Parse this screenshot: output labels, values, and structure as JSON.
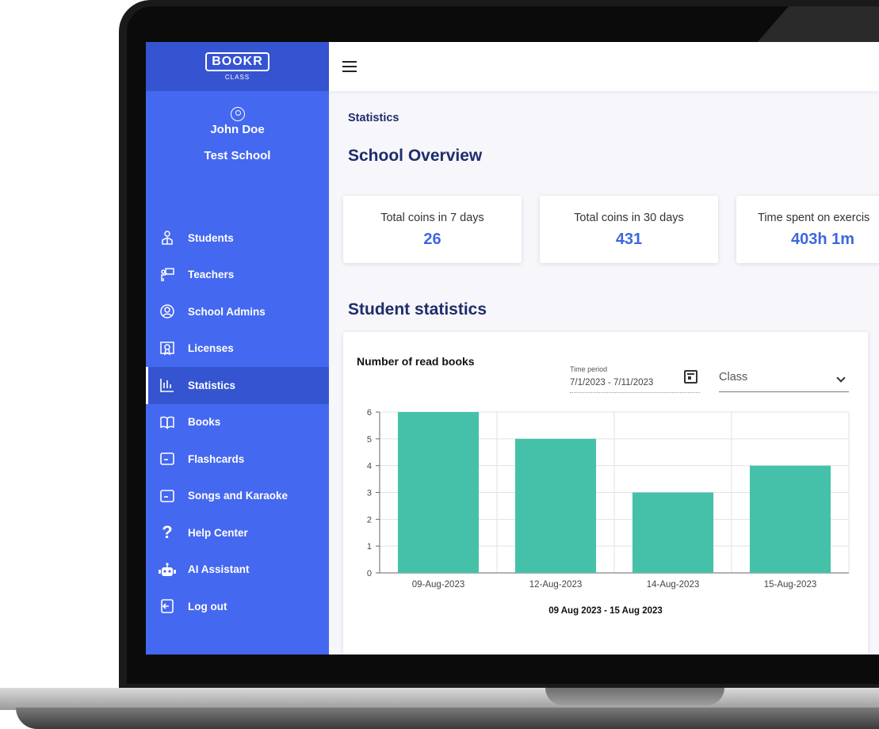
{
  "brand": {
    "logo": "BOOKR",
    "sub": "CLASS"
  },
  "profile": {
    "name": "John Doe",
    "school": "Test School"
  },
  "nav": [
    {
      "label": "Students",
      "icon": "student-icon"
    },
    {
      "label": "Teachers",
      "icon": "teacher-icon"
    },
    {
      "label": "School Admins",
      "icon": "admin-user-icon"
    },
    {
      "label": "Licenses",
      "icon": "license-icon"
    },
    {
      "label": "Statistics",
      "icon": "bar-chart-icon",
      "active": true
    },
    {
      "label": "Books",
      "icon": "book-icon"
    },
    {
      "label": "Flashcards",
      "icon": "flashcard-icon"
    },
    {
      "label": "Songs and Karaoke",
      "icon": "song-icon"
    },
    {
      "label": "Help Center",
      "icon": "question-icon"
    },
    {
      "label": "AI Assistant",
      "icon": "robot-icon"
    },
    {
      "label": "Log out",
      "icon": "logout-icon"
    }
  ],
  "page": {
    "breadcrumb": "Statistics",
    "overview_title": "School Overview",
    "student_stats_title": "Student statistics"
  },
  "cards": [
    {
      "label": "Total coins in 7 days",
      "value": "26"
    },
    {
      "label": "Total coins in 30 days",
      "value": "431"
    },
    {
      "label": "Time spent on exercis",
      "value": "403h 1m"
    }
  ],
  "chart_panel": {
    "title": "Number of read books",
    "time_period_label": "Time period",
    "time_period_value": "7/1/2023 - 7/11/2023",
    "class_placeholder": "Class",
    "range_label": "09 Aug 2023 - 15 Aug 2023"
  },
  "colors": {
    "sidebar": "#4568f0",
    "sidebar_active": "#3555d0",
    "bar": "#45c1aa",
    "accent": "#3d67e0"
  },
  "chart_data": {
    "type": "bar",
    "categories": [
      "09-Aug-2023",
      "12-Aug-2023",
      "14-Aug-2023",
      "15-Aug-2023"
    ],
    "values": [
      6,
      5,
      3,
      4
    ],
    "ylim": [
      0,
      6
    ],
    "yticks": [
      0,
      1,
      2,
      3,
      4,
      5,
      6
    ],
    "grid": true,
    "title": "Number of read books",
    "xlabel": "09 Aug 2023 - 15 Aug 2023"
  }
}
